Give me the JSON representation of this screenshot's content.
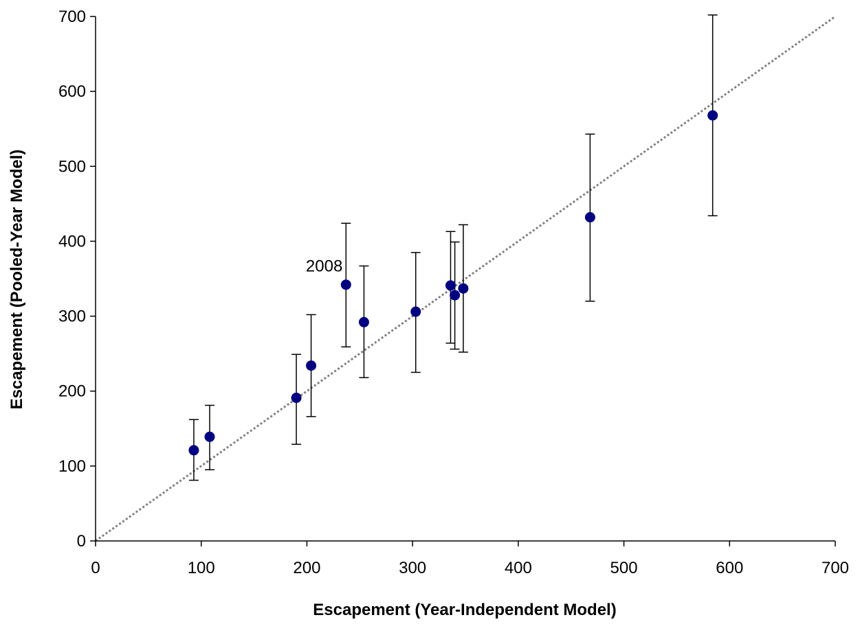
{
  "chart_data": {
    "type": "scatter",
    "title": "",
    "xlabel": "Escapement (Year-Independent Model)",
    "ylabel": "Escapement (Pooled-Year Model)",
    "xlim": [
      0,
      700
    ],
    "ylim": [
      0,
      700
    ],
    "x_ticks": [
      0,
      100,
      200,
      300,
      400,
      500,
      600,
      700
    ],
    "y_ticks": [
      0,
      100,
      200,
      300,
      400,
      500,
      600,
      700
    ],
    "grid": false,
    "legend": "none",
    "points": [
      {
        "x": 93,
        "y": 121,
        "y_low": 81,
        "y_high": 162
      },
      {
        "x": 108,
        "y": 139,
        "y_low": 95,
        "y_high": 181
      },
      {
        "x": 190,
        "y": 191,
        "y_low": 129,
        "y_high": 249
      },
      {
        "x": 204,
        "y": 234,
        "y_low": 166,
        "y_high": 302
      },
      {
        "x": 237,
        "y": 342,
        "y_low": 259,
        "y_high": 424
      },
      {
        "x": 254,
        "y": 292,
        "y_low": 218,
        "y_high": 367
      },
      {
        "x": 303,
        "y": 306,
        "y_low": 225,
        "y_high": 385
      },
      {
        "x": 336,
        "y": 341,
        "y_low": 264,
        "y_high": 413
      },
      {
        "x": 340,
        "y": 328,
        "y_low": 256,
        "y_high": 399
      },
      {
        "x": 348,
        "y": 337,
        "y_low": 252,
        "y_high": 422
      },
      {
        "x": 468,
        "y": 432,
        "y_low": 320,
        "y_high": 543
      },
      {
        "x": 584,
        "y": 568,
        "y_low": 434,
        "y_high": 702
      }
    ],
    "reference_line": {
      "x": [
        0,
        700
      ],
      "y": [
        0,
        700
      ],
      "style": "dotted"
    },
    "annotations": [
      {
        "text": "2008",
        "x": 237,
        "y": 342
      }
    ],
    "colors": {
      "point": "#000080",
      "error_bar": "#000000",
      "reference_line": "#808080",
      "axis": "#000000"
    }
  }
}
